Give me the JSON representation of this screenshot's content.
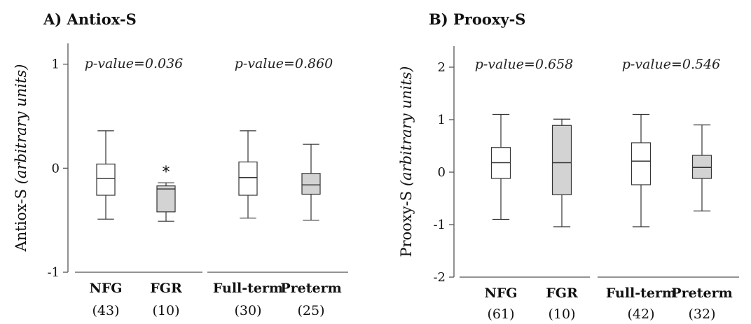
{
  "chart_data": [
    {
      "type": "box",
      "title": "A) Antiox-S",
      "ylabel_main": "Antiox-S",
      "ylabel_unit": "(arbitrary units)",
      "ylim": [
        -1,
        1.2
      ],
      "yticks": [
        {
          "v": 1,
          "label": "1"
        },
        {
          "v": 0,
          "label": "0"
        },
        {
          "v": -1,
          "label": "-1"
        }
      ],
      "colors": {
        "white_box": "#ffffff",
        "grey_box": "#d3d3d3",
        "stroke": "#333333"
      },
      "groups": [
        {
          "pvalue": "p-value=0.036",
          "categories": [
            {
              "name": "NFG",
              "n": "(43)",
              "fill": "white",
              "min": -0.49,
              "q1": -0.26,
              "median": -0.1,
              "q3": 0.04,
              "max": 0.36
            },
            {
              "name": "FGR",
              "n": "(10)",
              "fill": "grey",
              "min": -0.51,
              "q1": -0.42,
              "median": -0.2,
              "q3": -0.17,
              "max": -0.14,
              "outlier_mark": "*"
            }
          ]
        },
        {
          "pvalue": "p-value=0.860",
          "categories": [
            {
              "name": "Full-term",
              "n": "(30)",
              "fill": "white",
              "min": -0.48,
              "q1": -0.26,
              "median": -0.09,
              "q3": 0.06,
              "max": 0.36
            },
            {
              "name": "Preterm",
              "n": "(25)",
              "fill": "grey",
              "min": -0.5,
              "q1": -0.25,
              "median": -0.16,
              "q3": -0.05,
              "max": 0.23
            }
          ]
        }
      ]
    },
    {
      "type": "box",
      "title": "B) Prooxy-S",
      "ylabel_main": "Prooxy-S",
      "ylabel_unit": "(arbitrary units)",
      "ylim": [
        -2,
        2.4
      ],
      "yticks": [
        {
          "v": 2,
          "label": "2"
        },
        {
          "v": 1,
          "label": "1"
        },
        {
          "v": 0,
          "label": "0"
        },
        {
          "v": -1,
          "label": "-1"
        },
        {
          "v": -2,
          "label": "-2"
        }
      ],
      "colors": {
        "white_box": "#ffffff",
        "grey_box": "#d3d3d3",
        "stroke": "#333333"
      },
      "groups": [
        {
          "pvalue": "p-value=0.658",
          "categories": [
            {
              "name": "NFG",
              "n": "(61)",
              "fill": "white",
              "min": -0.9,
              "q1": -0.12,
              "median": 0.18,
              "q3": 0.47,
              "max": 1.1
            },
            {
              "name": "FGR",
              "n": "(10)",
              "fill": "grey",
              "min": -1.04,
              "q1": -0.43,
              "median": 0.18,
              "q3": 0.89,
              "max": 1.01
            }
          ]
        },
        {
          "pvalue": "p-value=0.546",
          "categories": [
            {
              "name": "Full-term",
              "n": "(42)",
              "fill": "white",
              "min": -1.04,
              "q1": -0.24,
              "median": 0.21,
              "q3": 0.56,
              "max": 1.1
            },
            {
              "name": "Preterm",
              "n": "(32)",
              "fill": "grey",
              "min": -0.74,
              "q1": -0.12,
              "median": 0.09,
              "q3": 0.32,
              "max": 0.9
            }
          ]
        }
      ]
    }
  ]
}
